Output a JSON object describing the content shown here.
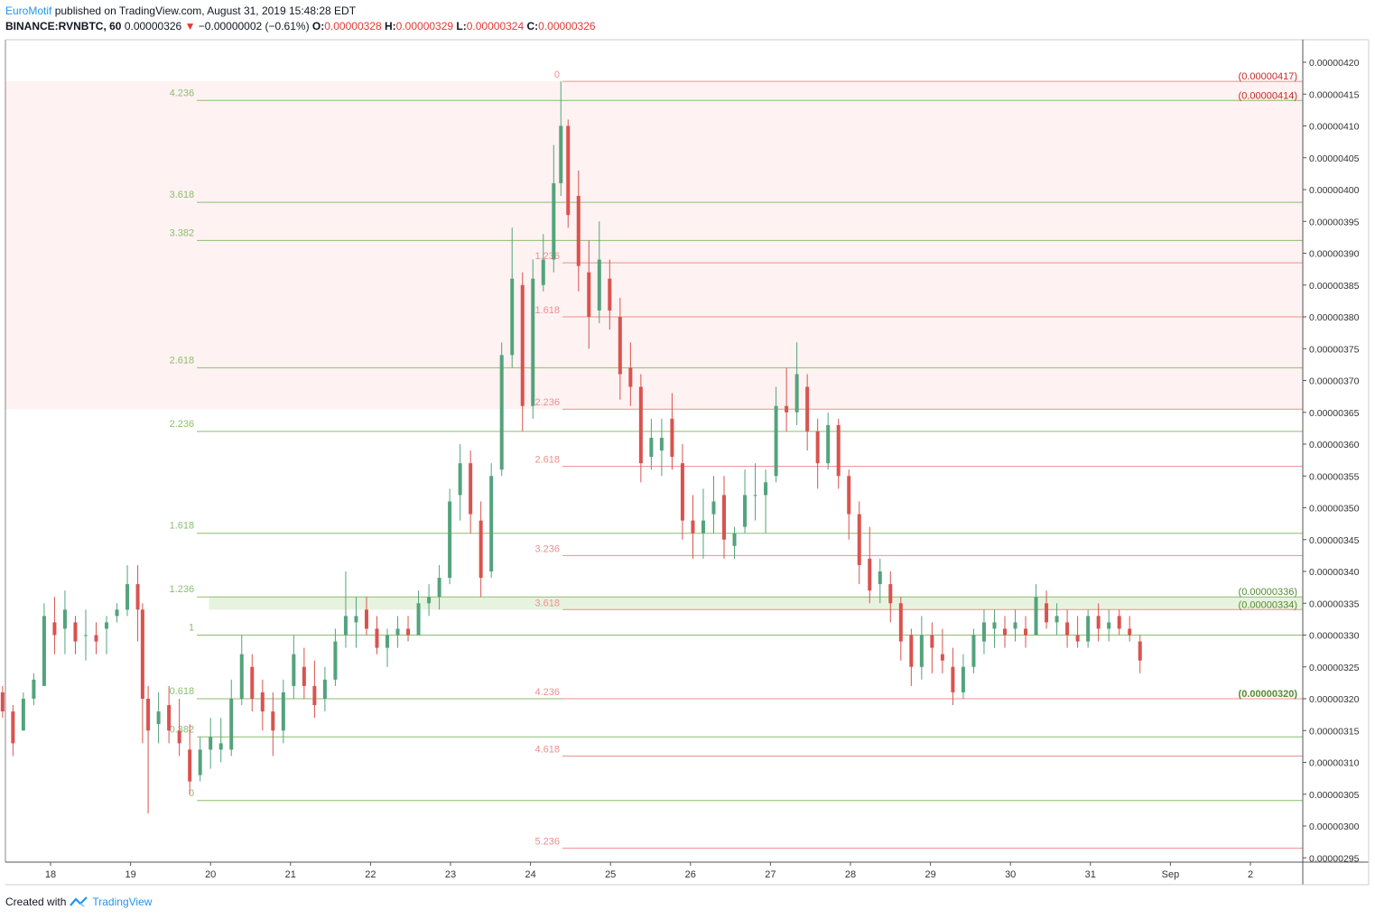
{
  "header": {
    "author": "EuroMotif",
    "published_text": " published on TradingView.com, August 31, 2019 15:48:28 EDT",
    "symbol": "BINANCE:RVNBTC, 60",
    "last": "0.00000326",
    "arrow": "▼",
    "change": "−0.00000002 (−0.61%)",
    "o_label": "O:",
    "o_value": "0.00000328",
    "h_label": "H:",
    "h_value": "0.00000329",
    "l_label": "L:",
    "l_value": "0.00000324",
    "c_label": "C:",
    "c_value": "0.00000326"
  },
  "footer": {
    "created_with": "Created with",
    "brand": "TradingView"
  },
  "colors": {
    "up": "#53a37c",
    "down": "#d9534f",
    "fib_green": "#8bbd6f",
    "fib_red": "#ef8e8e",
    "zone_red": "#fde7e7",
    "zone_green": "#e6f2dc"
  },
  "chart_data": {
    "type": "candlestick",
    "symbol": "BINANCE:RVNBTC",
    "interval": "60",
    "ylim": [
      2.94e-06,
      4.24e-06
    ],
    "y_ticks": [
      "0.00000420",
      "0.00000415",
      "0.00000410",
      "0.00000405",
      "0.00000400",
      "0.00000395",
      "0.00000390",
      "0.00000385",
      "0.00000380",
      "0.00000375",
      "0.00000370",
      "0.00000365",
      "0.00000360",
      "0.00000355",
      "0.00000350",
      "0.00000345",
      "0.00000340",
      "0.00000335",
      "0.00000330",
      "0.00000325",
      "0.00000320",
      "0.00000315",
      "0.00000310",
      "0.00000305",
      "0.00000300",
      "0.00000295"
    ],
    "x_ticks": [
      {
        "label": "18",
        "day": 18
      },
      {
        "label": "19",
        "day": 19
      },
      {
        "label": "20",
        "day": 20
      },
      {
        "label": "21",
        "day": 21
      },
      {
        "label": "22",
        "day": 22
      },
      {
        "label": "23",
        "day": 23
      },
      {
        "label": "24",
        "day": 24
      },
      {
        "label": "25",
        "day": 25
      },
      {
        "label": "26",
        "day": 26
      },
      {
        "label": "27",
        "day": 27
      },
      {
        "label": "28",
        "day": 28
      },
      {
        "label": "29",
        "day": 29
      },
      {
        "label": "30",
        "day": 30
      },
      {
        "label": "31",
        "day": 31
      },
      {
        "label": "Sep",
        "day": 32
      },
      {
        "label": "2",
        "day": 33
      }
    ],
    "price_labels": [
      {
        "text": "(0.00000417)",
        "value": 4.17e-06,
        "color": "red"
      },
      {
        "text": "(0.00000414)",
        "value": 4.14e-06,
        "color": "red"
      },
      {
        "text": "(0.00000336)",
        "value": 3.36e-06,
        "color": "green"
      },
      {
        "text": "(0.00000334)",
        "value": 3.34e-06,
        "color": "green"
      },
      {
        "text": "(0.00000320)",
        "value": 3.2e-06,
        "color": "green"
      }
    ],
    "fib_extension_green": {
      "start_day": 19.83,
      "levels": [
        {
          "label": "4.236",
          "value": 4.14e-06
        },
        {
          "label": "3.618",
          "value": 3.98e-06
        },
        {
          "label": "3.382",
          "value": 3.92e-06
        },
        {
          "label": "2.618",
          "value": 3.72e-06
        },
        {
          "label": "2.236",
          "value": 3.62e-06
        },
        {
          "label": "1.618",
          "value": 3.46e-06
        },
        {
          "label": "1.236",
          "value": 3.36e-06
        },
        {
          "label": "1",
          "value": 3.3e-06
        },
        {
          "label": "0.618",
          "value": 3.2e-06
        },
        {
          "label": "0.382",
          "value": 3.14e-06
        },
        {
          "label": "0",
          "value": 3.04e-06
        }
      ]
    },
    "fib_extension_red": {
      "start_day": 24.4,
      "levels": [
        {
          "label": "0",
          "value": 4.17e-06
        },
        {
          "label": "1.236",
          "value": 3.885e-06
        },
        {
          "label": "1.618",
          "value": 3.8e-06
        },
        {
          "label": "2.236",
          "value": 3.655e-06
        },
        {
          "label": "2.618",
          "value": 3.565e-06
        },
        {
          "label": "3.236",
          "value": 3.425e-06
        },
        {
          "label": "3.618",
          "value": 3.34e-06
        },
        {
          "label": "4.236",
          "value": 3.2e-06
        },
        {
          "label": "4.618",
          "value": 3.11e-06
        },
        {
          "label": "5.236",
          "value": 2.965e-06
        }
      ]
    },
    "zones": [
      {
        "color": "red",
        "from_day": 17.0,
        "top": 4.17e-06,
        "bottom": 3.655e-06
      },
      {
        "color": "green",
        "from_day": 19.98,
        "top": 3.36e-06,
        "bottom": 3.34e-06
      }
    ],
    "candles": [
      [
        17.05,
        3.2e-06,
        3.2e-06,
        3.2e-06,
        3.2e-06
      ],
      [
        17.14,
        3.22e-06,
        3.24e-06,
        3.19e-06,
        3.2e-06
      ],
      [
        17.27,
        3.2e-06,
        3.23e-06,
        3.18e-06,
        3.22e-06
      ],
      [
        17.4,
        3.21e-06,
        3.22e-06,
        3.17e-06,
        3.18e-06
      ],
      [
        17.53,
        3.18e-06,
        3.19e-06,
        3.11e-06,
        3.13e-06
      ],
      [
        17.66,
        3.15e-06,
        3.21e-06,
        3.15e-06,
        3.2e-06
      ],
      [
        17.79,
        3.2e-06,
        3.24e-06,
        3.19e-06,
        3.23e-06
      ],
      [
        17.92,
        3.22e-06,
        3.35e-06,
        3.22e-06,
        3.33e-06
      ],
      [
        18.05,
        3.32e-06,
        3.36e-06,
        3.27e-06,
        3.3e-06
      ],
      [
        18.18,
        3.31e-06,
        3.37e-06,
        3.27e-06,
        3.34e-06
      ],
      [
        18.31,
        3.32e-06,
        3.33e-06,
        3.27e-06,
        3.29e-06
      ],
      [
        18.44,
        3.3e-06,
        3.34e-06,
        3.26e-06,
        3.3e-06
      ],
      [
        18.57,
        3.3e-06,
        3.32e-06,
        3.27e-06,
        3.29e-06
      ],
      [
        18.7,
        3.31e-06,
        3.33e-06,
        3.27e-06,
        3.32e-06
      ],
      [
        18.83,
        3.33e-06,
        3.35e-06,
        3.32e-06,
        3.34e-06
      ],
      [
        18.96,
        3.34e-06,
        3.41e-06,
        3.33e-06,
        3.38e-06
      ],
      [
        19.09,
        3.38e-06,
        3.41e-06,
        3.29e-06,
        3.34e-06
      ],
      [
        19.15,
        3.34e-06,
        3.35e-06,
        3.13e-06,
        3.2e-06
      ],
      [
        19.22,
        3.2e-06,
        3.22e-06,
        3.02e-06,
        3.15e-06
      ],
      [
        19.35,
        3.16e-06,
        3.21e-06,
        3.13e-06,
        3.18e-06
      ],
      [
        19.48,
        3.19e-06,
        3.22e-06,
        3.13e-06,
        3.15e-06
      ],
      [
        19.61,
        3.15e-06,
        3.2e-06,
        3.11e-06,
        3.13e-06
      ],
      [
        19.74,
        3.12e-06,
        3.16e-06,
        3.05e-06,
        3.07e-06
      ],
      [
        19.87,
        3.08e-06,
        3.14e-06,
        3.07e-06,
        3.12e-06
      ],
      [
        20.0,
        3.12e-06,
        3.17e-06,
        3.09e-06,
        3.14e-06
      ],
      [
        20.13,
        3.12e-06,
        3.17e-06,
        3.1e-06,
        3.13e-06
      ],
      [
        20.26,
        3.12e-06,
        3.23e-06,
        3.11e-06,
        3.2e-06
      ],
      [
        20.39,
        3.2e-06,
        3.3e-06,
        3.19e-06,
        3.27e-06
      ],
      [
        20.52,
        3.25e-06,
        3.27e-06,
        3.18e-06,
        3.2e-06
      ],
      [
        20.65,
        3.21e-06,
        3.23e-06,
        3.15e-06,
        3.18e-06
      ],
      [
        20.78,
        3.18e-06,
        3.21e-06,
        3.11e-06,
        3.15e-06
      ],
      [
        20.91,
        3.15e-06,
        3.23e-06,
        3.13e-06,
        3.21e-06
      ],
      [
        21.04,
        3.22e-06,
        3.3e-06,
        3.2e-06,
        3.27e-06
      ],
      [
        21.17,
        3.25e-06,
        3.28e-06,
        3.2e-06,
        3.22e-06
      ],
      [
        21.3,
        3.22e-06,
        3.26e-06,
        3.17e-06,
        3.19e-06
      ],
      [
        21.43,
        3.2e-06,
        3.25e-06,
        3.18e-06,
        3.23e-06
      ],
      [
        21.56,
        3.23e-06,
        3.31e-06,
        3.22e-06,
        3.29e-06
      ],
      [
        21.69,
        3.3e-06,
        3.4e-06,
        3.28e-06,
        3.33e-06
      ],
      [
        21.82,
        3.32e-06,
        3.36e-06,
        3.28e-06,
        3.33e-06
      ],
      [
        21.95,
        3.34e-06,
        3.36e-06,
        3.3e-06,
        3.31e-06
      ],
      [
        22.08,
        3.31e-06,
        3.33e-06,
        3.27e-06,
        3.28e-06
      ],
      [
        22.21,
        3.28e-06,
        3.31e-06,
        3.25e-06,
        3.3e-06
      ],
      [
        22.34,
        3.3e-06,
        3.33e-06,
        3.28e-06,
        3.31e-06
      ],
      [
        22.47,
        3.31e-06,
        3.33e-06,
        3.29e-06,
        3.3e-06
      ],
      [
        22.6,
        3.3e-06,
        3.37e-06,
        3.3e-06,
        3.35e-06
      ],
      [
        22.73,
        3.35e-06,
        3.38e-06,
        3.33e-06,
        3.36e-06
      ],
      [
        22.86,
        3.36e-06,
        3.41e-06,
        3.34e-06,
        3.39e-06
      ],
      [
        22.99,
        3.39e-06,
        3.53e-06,
        3.38e-06,
        3.51e-06
      ],
      [
        23.12,
        3.52e-06,
        3.6e-06,
        3.48e-06,
        3.57e-06
      ],
      [
        23.25,
        3.57e-06,
        3.59e-06,
        3.46e-06,
        3.49e-06
      ],
      [
        23.38,
        3.48e-06,
        3.51e-06,
        3.36e-06,
        3.39e-06
      ],
      [
        23.51,
        3.4e-06,
        3.57e-06,
        3.39e-06,
        3.55e-06
      ],
      [
        23.64,
        3.56e-06,
        3.76e-06,
        3.55e-06,
        3.74e-06
      ],
      [
        23.77,
        3.74e-06,
        3.94e-06,
        3.72e-06,
        3.86e-06
      ],
      [
        23.9,
        3.85e-06,
        3.87e-06,
        3.62e-06,
        3.66e-06
      ],
      [
        24.03,
        3.66e-06,
        3.89e-06,
        3.64e-06,
        3.86e-06
      ],
      [
        24.16,
        3.85e-06,
        3.93e-06,
        3.84e-06,
        3.89e-06
      ],
      [
        24.29,
        3.89e-06,
        4.07e-06,
        3.87e-06,
        4.01e-06
      ],
      [
        24.38,
        4.01e-06,
        4.17e-06,
        3.99e-06,
        4.1e-06
      ],
      [
        24.47,
        4.1e-06,
        4.11e-06,
        3.94e-06,
        3.96e-06
      ],
      [
        24.6,
        3.99e-06,
        4.03e-06,
        3.84e-06,
        3.88e-06
      ],
      [
        24.73,
        3.87e-06,
        3.92e-06,
        3.75e-06,
        3.8e-06
      ],
      [
        24.86,
        3.81e-06,
        3.95e-06,
        3.79e-06,
        3.89e-06
      ],
      [
        24.99,
        3.86e-06,
        3.89e-06,
        3.78e-06,
        3.81e-06
      ],
      [
        25.12,
        3.8e-06,
        3.83e-06,
        3.67e-06,
        3.71e-06
      ],
      [
        25.25,
        3.72e-06,
        3.76e-06,
        3.66e-06,
        3.69e-06
      ],
      [
        25.38,
        3.69e-06,
        3.71e-06,
        3.54e-06,
        3.57e-06
      ],
      [
        25.51,
        3.58e-06,
        3.64e-06,
        3.56e-06,
        3.61e-06
      ],
      [
        25.64,
        3.59e-06,
        3.64e-06,
        3.55e-06,
        3.61e-06
      ],
      [
        25.77,
        3.64e-06,
        3.68e-06,
        3.56e-06,
        3.58e-06
      ],
      [
        25.9,
        3.57e-06,
        3.6e-06,
        3.45e-06,
        3.48e-06
      ],
      [
        26.03,
        3.48e-06,
        3.52e-06,
        3.42e-06,
        3.46e-06
      ],
      [
        26.16,
        3.46e-06,
        3.53e-06,
        3.42e-06,
        3.48e-06
      ],
      [
        26.29,
        3.49e-06,
        3.55e-06,
        3.46e-06,
        3.51e-06
      ],
      [
        26.42,
        3.52e-06,
        3.55e-06,
        3.42e-06,
        3.45e-06
      ],
      [
        26.55,
        3.44e-06,
        3.47e-06,
        3.42e-06,
        3.46e-06
      ],
      [
        26.68,
        3.47e-06,
        3.56e-06,
        3.46e-06,
        3.52e-06
      ],
      [
        26.81,
        3.52e-06,
        3.57e-06,
        3.48e-06,
        3.52e-06
      ],
      [
        26.94,
        3.52e-06,
        3.56e-06,
        3.46e-06,
        3.54e-06
      ],
      [
        27.07,
        3.55e-06,
        3.69e-06,
        3.54e-06,
        3.66e-06
      ],
      [
        27.2,
        3.66e-06,
        3.72e-06,
        3.62e-06,
        3.65e-06
      ],
      [
        27.33,
        3.65e-06,
        3.76e-06,
        3.63e-06,
        3.71e-06
      ],
      [
        27.46,
        3.69e-06,
        3.71e-06,
        3.59e-06,
        3.62e-06
      ],
      [
        27.59,
        3.62e-06,
        3.64e-06,
        3.53e-06,
        3.57e-06
      ],
      [
        27.72,
        3.57e-06,
        3.65e-06,
        3.56e-06,
        3.63e-06
      ],
      [
        27.85,
        3.63e-06,
        3.64e-06,
        3.53e-06,
        3.55e-06
      ],
      [
        27.98,
        3.55e-06,
        3.56e-06,
        3.45e-06,
        3.49e-06
      ],
      [
        28.11,
        3.49e-06,
        3.51e-06,
        3.38e-06,
        3.41e-06
      ],
      [
        28.24,
        3.42e-06,
        3.47e-06,
        3.35e-06,
        3.37e-06
      ],
      [
        28.37,
        3.38e-06,
        3.42e-06,
        3.35e-06,
        3.4e-06
      ],
      [
        28.5,
        3.38e-06,
        3.4e-06,
        3.32e-06,
        3.35e-06
      ],
      [
        28.63,
        3.35e-06,
        3.36e-06,
        3.26e-06,
        3.29e-06
      ],
      [
        28.76,
        3.3e-06,
        3.31e-06,
        3.22e-06,
        3.25e-06
      ],
      [
        28.89,
        3.25e-06,
        3.33e-06,
        3.23e-06,
        3.3e-06
      ],
      [
        29.02,
        3.3e-06,
        3.32e-06,
        3.24e-06,
        3.28e-06
      ],
      [
        29.15,
        3.27e-06,
        3.31e-06,
        3.24e-06,
        3.26e-06
      ],
      [
        29.28,
        3.25e-06,
        3.28e-06,
        3.19e-06,
        3.21e-06
      ],
      [
        29.41,
        3.21e-06,
        3.27e-06,
        3.2e-06,
        3.25e-06
      ],
      [
        29.54,
        3.25e-06,
        3.31e-06,
        3.24e-06,
        3.3e-06
      ],
      [
        29.67,
        3.29e-06,
        3.34e-06,
        3.27e-06,
        3.32e-06
      ],
      [
        29.8,
        3.31e-06,
        3.34e-06,
        3.28e-06,
        3.32e-06
      ],
      [
        29.93,
        3.31e-06,
        3.33e-06,
        3.28e-06,
        3.3e-06
      ],
      [
        30.06,
        3.31e-06,
        3.34e-06,
        3.29e-06,
        3.32e-06
      ],
      [
        30.19,
        3.31e-06,
        3.33e-06,
        3.28e-06,
        3.3e-06
      ],
      [
        30.32,
        3.3e-06,
        3.38e-06,
        3.3e-06,
        3.36e-06
      ],
      [
        30.45,
        3.35e-06,
        3.37e-06,
        3.31e-06,
        3.32e-06
      ],
      [
        30.58,
        3.32e-06,
        3.35e-06,
        3.3e-06,
        3.33e-06
      ],
      [
        30.71,
        3.32e-06,
        3.34e-06,
        3.28e-06,
        3.3e-06
      ],
      [
        30.84,
        3.3e-06,
        3.33e-06,
        3.28e-06,
        3.29e-06
      ],
      [
        30.97,
        3.29e-06,
        3.34e-06,
        3.28e-06,
        3.33e-06
      ],
      [
        31.1,
        3.33e-06,
        3.35e-06,
        3.29e-06,
        3.31e-06
      ],
      [
        31.23,
        3.31e-06,
        3.34e-06,
        3.29e-06,
        3.32e-06
      ],
      [
        31.36,
        3.33e-06,
        3.34e-06,
        3.3e-06,
        3.31e-06
      ],
      [
        31.49,
        3.31e-06,
        3.33e-06,
        3.29e-06,
        3.3e-06
      ],
      [
        31.62,
        3.29e-06,
        3.3e-06,
        3.24e-06,
        3.26e-06
      ]
    ]
  }
}
